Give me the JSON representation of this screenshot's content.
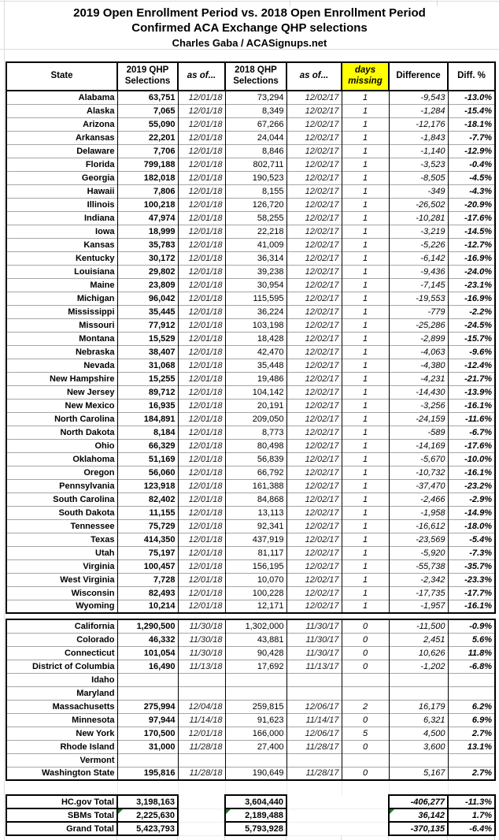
{
  "title": {
    "line1": "2019 Open Enrollment Period vs. 2018 Open Enrollment Period",
    "line2": "Confirmed ACA Exchange QHP selections",
    "byline": "Charles Gaba / ACASignups.net"
  },
  "header": [
    "State",
    "2019 QHP Selections",
    "as of...",
    "2018 QHP Selections",
    "as of...",
    "days missing",
    "Difference",
    "Diff. %"
  ],
  "hcgov": [
    [
      "Alabama",
      "63,751",
      "12/01/18",
      "73,294",
      "12/02/17",
      "1",
      "-9,543",
      "-13.0%"
    ],
    [
      "Alaska",
      "7,065",
      "12/01/18",
      "8,349",
      "12/02/17",
      "1",
      "-1,284",
      "-15.4%"
    ],
    [
      "Arizona",
      "55,090",
      "12/01/18",
      "67,266",
      "12/02/17",
      "1",
      "-12,176",
      "-18.1%"
    ],
    [
      "Arkansas",
      "22,201",
      "12/01/18",
      "24,044",
      "12/02/17",
      "1",
      "-1,843",
      "-7.7%"
    ],
    [
      "Delaware",
      "7,706",
      "12/01/18",
      "8,846",
      "12/02/17",
      "1",
      "-1,140",
      "-12.9%"
    ],
    [
      "Florida",
      "799,188",
      "12/01/18",
      "802,711",
      "12/02/17",
      "1",
      "-3,523",
      "-0.4%"
    ],
    [
      "Georgia",
      "182,018",
      "12/01/18",
      "190,523",
      "12/02/17",
      "1",
      "-8,505",
      "-4.5%"
    ],
    [
      "Hawaii",
      "7,806",
      "12/01/18",
      "8,155",
      "12/02/17",
      "1",
      "-349",
      "-4.3%"
    ],
    [
      "Illinois",
      "100,218",
      "12/01/18",
      "126,720",
      "12/02/17",
      "1",
      "-26,502",
      "-20.9%"
    ],
    [
      "Indiana",
      "47,974",
      "12/01/18",
      "58,255",
      "12/02/17",
      "1",
      "-10,281",
      "-17.6%"
    ],
    [
      "Iowa",
      "18,999",
      "12/01/18",
      "22,218",
      "12/02/17",
      "1",
      "-3,219",
      "-14.5%"
    ],
    [
      "Kansas",
      "35,783",
      "12/01/18",
      "41,009",
      "12/02/17",
      "1",
      "-5,226",
      "-12.7%"
    ],
    [
      "Kentucky",
      "30,172",
      "12/01/18",
      "36,314",
      "12/02/17",
      "1",
      "-6,142",
      "-16.9%"
    ],
    [
      "Louisiana",
      "29,802",
      "12/01/18",
      "39,238",
      "12/02/17",
      "1",
      "-9,436",
      "-24.0%"
    ],
    [
      "Maine",
      "23,809",
      "12/01/18",
      "30,954",
      "12/02/17",
      "1",
      "-7,145",
      "-23.1%"
    ],
    [
      "Michigan",
      "96,042",
      "12/01/18",
      "115,595",
      "12/02/17",
      "1",
      "-19,553",
      "-16.9%"
    ],
    [
      "Mississippi",
      "35,445",
      "12/01/18",
      "36,224",
      "12/02/17",
      "1",
      "-779",
      "-2.2%"
    ],
    [
      "Missouri",
      "77,912",
      "12/01/18",
      "103,198",
      "12/02/17",
      "1",
      "-25,286",
      "-24.5%"
    ],
    [
      "Montana",
      "15,529",
      "12/01/18",
      "18,428",
      "12/02/17",
      "1",
      "-2,899",
      "-15.7%"
    ],
    [
      "Nebraska",
      "38,407",
      "12/01/18",
      "42,470",
      "12/02/17",
      "1",
      "-4,063",
      "-9.6%"
    ],
    [
      "Nevada",
      "31,068",
      "12/01/18",
      "35,448",
      "12/02/17",
      "1",
      "-4,380",
      "-12.4%"
    ],
    [
      "New Hampshire",
      "15,255",
      "12/01/18",
      "19,486",
      "12/02/17",
      "1",
      "-4,231",
      "-21.7%"
    ],
    [
      "New Jersey",
      "89,712",
      "12/01/18",
      "104,142",
      "12/02/17",
      "1",
      "-14,430",
      "-13.9%"
    ],
    [
      "New Mexico",
      "16,935",
      "12/01/18",
      "20,191",
      "12/02/17",
      "1",
      "-3,256",
      "-16.1%"
    ],
    [
      "North Carolina",
      "184,891",
      "12/01/18",
      "209,050",
      "12/02/17",
      "1",
      "-24,159",
      "-11.6%"
    ],
    [
      "North Dakota",
      "8,184",
      "12/01/18",
      "8,773",
      "12/02/17",
      "1",
      "-589",
      "-6.7%"
    ],
    [
      "Ohio",
      "66,329",
      "12/01/18",
      "80,498",
      "12/02/17",
      "1",
      "-14,169",
      "-17.6%"
    ],
    [
      "Oklahoma",
      "51,169",
      "12/01/18",
      "56,839",
      "12/02/17",
      "1",
      "-5,670",
      "-10.0%"
    ],
    [
      "Oregon",
      "56,060",
      "12/01/18",
      "66,792",
      "12/02/17",
      "1",
      "-10,732",
      "-16.1%"
    ],
    [
      "Pennsylvania",
      "123,918",
      "12/01/18",
      "161,388",
      "12/02/17",
      "1",
      "-37,470",
      "-23.2%"
    ],
    [
      "South Carolina",
      "82,402",
      "12/01/18",
      "84,868",
      "12/02/17",
      "1",
      "-2,466",
      "-2.9%"
    ],
    [
      "South Dakota",
      "11,155",
      "12/01/18",
      "13,113",
      "12/02/17",
      "1",
      "-1,958",
      "-14.9%"
    ],
    [
      "Tennessee",
      "75,729",
      "12/01/18",
      "92,341",
      "12/02/17",
      "1",
      "-16,612",
      "-18.0%"
    ],
    [
      "Texas",
      "414,350",
      "12/01/18",
      "437,919",
      "12/02/17",
      "1",
      "-23,569",
      "-5.4%"
    ],
    [
      "Utah",
      "75,197",
      "12/01/18",
      "81,117",
      "12/02/17",
      "1",
      "-5,920",
      "-7.3%"
    ],
    [
      "Virginia",
      "100,457",
      "12/01/18",
      "156,195",
      "12/02/17",
      "1",
      "-55,738",
      "-35.7%"
    ],
    [
      "West Virginia",
      "7,728",
      "12/01/18",
      "10,070",
      "12/02/17",
      "1",
      "-2,342",
      "-23.3%"
    ],
    [
      "Wisconsin",
      "82,493",
      "12/01/18",
      "100,228",
      "12/02/17",
      "1",
      "-17,735",
      "-17.7%"
    ],
    [
      "Wyoming",
      "10,214",
      "12/01/18",
      "12,171",
      "12/02/17",
      "1",
      "-1,957",
      "-16.1%"
    ]
  ],
  "sbm": [
    [
      "California",
      "1,290,500",
      "11/30/18",
      "1,302,000",
      "11/30/17",
      "0",
      "-11,500",
      "-0.9%"
    ],
    [
      "Colorado",
      "46,332",
      "11/30/18",
      "43,881",
      "11/30/17",
      "0",
      "2,451",
      "5.6%"
    ],
    [
      "Connecticut",
      "101,054",
      "11/30/18",
      "90,428",
      "11/30/17",
      "0",
      "10,626",
      "11.8%"
    ],
    [
      "District of Columbia",
      "16,490",
      "11/13/18",
      "17,692",
      "11/13/17",
      "0",
      "-1,202",
      "-6.8%"
    ],
    [
      "Idaho",
      "",
      "",
      "",
      "",
      "",
      "",
      ""
    ],
    [
      "Maryland",
      "",
      "",
      "",
      "",
      "",
      "",
      ""
    ],
    [
      "Massachusetts",
      "275,994",
      "12/04/18",
      "259,815",
      "12/06/17",
      "2",
      "16,179",
      "6.2%"
    ],
    [
      "Minnesota",
      "97,944",
      "11/14/18",
      "91,623",
      "11/14/17",
      "0",
      "6,321",
      "6.9%"
    ],
    [
      "New York",
      "170,500",
      "12/01/18",
      "166,000",
      "12/06/17",
      "5",
      "4,500",
      "2.7%"
    ],
    [
      "Rhode Island",
      "31,000",
      "11/28/18",
      "27,400",
      "11/28/17",
      "0",
      "3,600",
      "13.1%"
    ],
    [
      "Vermont",
      "",
      "",
      "",
      "",
      "",
      "",
      ""
    ],
    [
      "Washington State",
      "195,816",
      "11/28/18",
      "190,649",
      "11/28/17",
      "0",
      "5,167",
      "2.7%"
    ]
  ],
  "totals": [
    {
      "label": "HC.gov Total",
      "v2019": "3,198,163",
      "v2018": "3,604,440",
      "diff": "-406,277",
      "pct": "-11.3%",
      "style": "white",
      "triangles": false
    },
    {
      "label": "SBMs Total",
      "v2019": "2,225,630",
      "v2018": "2,189,488",
      "diff": "36,142",
      "pct": "1.7%",
      "style": "blue",
      "triangles": true
    },
    {
      "label": "Grand Total",
      "v2019": "5,423,793",
      "v2018": "5,793,928",
      "diff": "-370,135",
      "pct": "-6.4%",
      "style": "yellow",
      "triangles": false
    }
  ],
  "colors": {
    "header_days_yellow": "#FFFF00",
    "days_cell_yellow": "#FFFFC8",
    "negative_pink": "#F78CA6",
    "positive_green": "#C9F5C9",
    "sbm_blue": "#9DC3E6",
    "grand_total_yellow": "#FFFF00",
    "comment_triangle_green": "#1F7A1F"
  }
}
